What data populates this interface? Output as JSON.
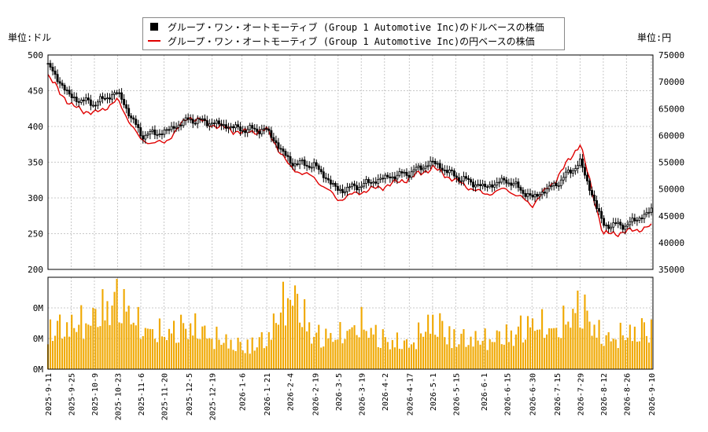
{
  "legend": {
    "usd_series": "グループ・ワン・オートモーティブ (Group 1 Automotive Inc)のドルベースの株価",
    "jpy_series": "グループ・ワン・オートモーティブ (Group 1 Automotive Inc)の円ベースの株価"
  },
  "units": {
    "left": "単位:ドル",
    "right": "単位:円"
  },
  "colors": {
    "usd_candles": "#000000",
    "jpy_line": "#e00000",
    "volume_bars": "#f0a800",
    "grid": "#c8c8c8"
  },
  "chart_data": [
    {
      "type": "line",
      "panel": "price",
      "title": "",
      "ylim_left": [
        200,
        500
      ],
      "ylim_right": [
        35000,
        75000
      ],
      "yticks_left": [
        "500",
        "450",
        "400",
        "350",
        "300",
        "250",
        "200"
      ],
      "yticks_right": [
        "75000",
        "70000",
        "65000",
        "60000",
        "55000",
        "50000",
        "45000",
        "40000",
        "35000"
      ],
      "grid": true,
      "legend_position": "top",
      "series": [
        {
          "name": "グループ・ワン・オートモーティブ (Group 1 Automotive Inc)のドルベースの株価",
          "style": "candlestick",
          "axis": "left",
          "x": [
            "2025-09-11",
            "2025-09-25",
            "2025-10-09",
            "2025-10-23",
            "2025-11-06",
            "2025-11-20",
            "2025-12-05",
            "2025-12-19",
            "2026-01-06",
            "2026-01-21",
            "2026-02-04",
            "2026-02-19",
            "2026-03-05",
            "2026-03-19",
            "2026-04-02",
            "2026-04-17",
            "2026-05-01",
            "2026-05-15",
            "2026-06-01",
            "2026-06-15",
            "2026-06-30",
            "2026-07-15",
            "2026-07-29",
            "2026-08-12",
            "2026-08-26",
            "2026-09-10"
          ],
          "values": [
            485,
            440,
            432,
            448,
            388,
            392,
            410,
            405,
            396,
            395,
            350,
            345,
            310,
            318,
            328,
            335,
            350,
            330,
            315,
            325,
            300,
            320,
            350,
            262,
            262,
            282
          ]
        },
        {
          "name": "グループ・ワン・オートモーティブ (Group 1 Automotive Inc)の円ベースの株価",
          "style": "line",
          "axis": "right",
          "x": [
            "2025-09-11",
            "2025-09-25",
            "2025-10-09",
            "2025-10-23",
            "2025-11-06",
            "2025-11-20",
            "2025-12-05",
            "2025-12-19",
            "2026-01-06",
            "2026-01-21",
            "2026-02-04",
            "2026-02-19",
            "2026-03-05",
            "2026-03-19",
            "2026-04-02",
            "2026-04-17",
            "2026-05-01",
            "2026-05-15",
            "2026-06-01",
            "2026-06-15",
            "2026-06-30",
            "2026-07-15",
            "2026-07-29",
            "2026-08-12",
            "2026-08-26",
            "2026-09-10"
          ],
          "values": [
            71000,
            65500,
            64000,
            66500,
            59000,
            58500,
            63500,
            62000,
            60500,
            61000,
            54000,
            52000,
            48000,
            49500,
            50500,
            52000,
            54000,
            51500,
            49000,
            50000,
            47000,
            52000,
            58500,
            41500,
            42000,
            43000
          ]
        }
      ]
    },
    {
      "type": "bar",
      "panel": "volume",
      "title": "",
      "yticks": [
        "0M",
        "0M",
        "0M"
      ],
      "x_ticks": [
        "2025-9-11",
        "2025-9-25",
        "2025-10-9",
        "2025-10-23",
        "2025-11-6",
        "2025-11-20",
        "2025-12-5",
        "2025-12-19",
        "2026-1-6",
        "2026-1-21",
        "2026-2-4",
        "2026-2-19",
        "2026-3-5",
        "2026-3-19",
        "2026-4-2",
        "2026-4-17",
        "2026-5-1",
        "2026-5-15",
        "2026-6-1",
        "2026-6-15",
        "2026-6-30",
        "2026-7-15",
        "2026-7-29",
        "2026-8-12",
        "2026-8-26",
        "2026-9-10"
      ],
      "series": [
        {
          "name": "",
          "values": [
            0.3,
            0.32,
            0.38,
            0.55,
            0.3,
            0.26,
            0.33,
            0.24,
            0.17,
            0.22,
            0.58,
            0.25,
            0.24,
            0.33,
            0.22,
            0.18,
            0.36,
            0.23,
            0.22,
            0.25,
            0.34,
            0.28,
            0.48,
            0.22,
            0.26,
            0.31
          ]
        }
      ]
    }
  ]
}
